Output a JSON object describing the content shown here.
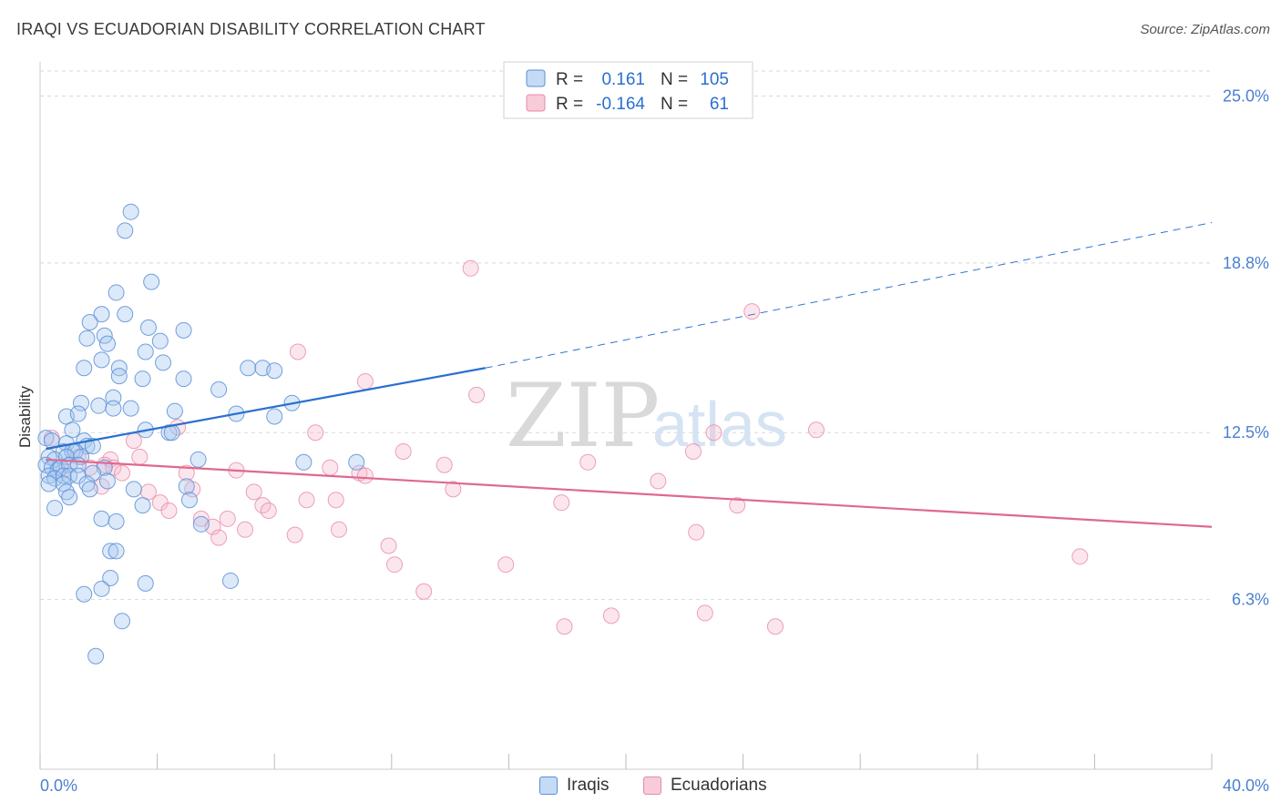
{
  "header": {
    "title": "IRAQI VS ECUADORIAN DISABILITY CORRELATION CHART",
    "source": "Source: ZipAtlas.com"
  },
  "watermark": {
    "zip": "ZIP",
    "atlas": "atlas"
  },
  "colors": {
    "iraqi_fill": "#a8c8f0",
    "iraqi_stroke": "#5a8fd6",
    "iraqi_line": "#2a6fcf",
    "ecuadorian_fill": "#f6b8cc",
    "ecuadorian_stroke": "#e789a8",
    "ecuadorian_line": "#e0688f",
    "axis_label": "#4a7fd0",
    "grid": "#d8d8d8"
  },
  "legend_top": {
    "rows": [
      {
        "r_label": "R =",
        "r_value": "0.161",
        "n_label": "N =",
        "n_value": "105"
      },
      {
        "r_label": "R =",
        "r_value": "-0.164",
        "n_label": "N =",
        "n_value": "61"
      }
    ]
  },
  "legend_bottom": {
    "iraqi": "Iraqis",
    "ecuadorian": "Ecuadorians"
  },
  "chart_data": {
    "type": "scatter",
    "title": "IRAQI VS ECUADORIAN DISABILITY CORRELATION CHART",
    "xlabel": "",
    "ylabel": "Disability",
    "xlim": [
      0,
      40
    ],
    "ylim": [
      0,
      26.2
    ],
    "x_tick_labels": [
      "0.0%",
      "40.0%"
    ],
    "y_ticks": [
      6.3,
      12.5,
      18.8,
      25.0
    ],
    "y_tick_labels": [
      "6.3%",
      "12.5%",
      "18.8%",
      "25.0%"
    ],
    "grid": "horizontal dashed",
    "series": [
      {
        "name": "Iraqis",
        "R": 0.161,
        "N": 105,
        "trend": {
          "solid": [
            [
              0.2,
              11.9
            ],
            [
              15.2,
              14.9
            ]
          ],
          "dashed": [
            [
              15.2,
              14.9
            ],
            [
              40,
              20.3
            ]
          ]
        },
        "points": [
          [
            3.1,
            20.7
          ],
          [
            2.9,
            20.0
          ],
          [
            3.8,
            18.1
          ],
          [
            2.6,
            17.7
          ],
          [
            2.1,
            16.9
          ],
          [
            2.9,
            16.9
          ],
          [
            1.7,
            16.6
          ],
          [
            3.7,
            16.4
          ],
          [
            4.9,
            16.3
          ],
          [
            2.2,
            16.1
          ],
          [
            1.6,
            16.0
          ],
          [
            4.1,
            15.9
          ],
          [
            2.3,
            15.8
          ],
          [
            3.6,
            15.5
          ],
          [
            2.1,
            15.2
          ],
          [
            4.2,
            15.1
          ],
          [
            1.5,
            14.9
          ],
          [
            2.7,
            14.9
          ],
          [
            7.1,
            14.9
          ],
          [
            7.6,
            14.9
          ],
          [
            8.0,
            14.8
          ],
          [
            2.7,
            14.6
          ],
          [
            3.5,
            14.5
          ],
          [
            4.9,
            14.5
          ],
          [
            6.1,
            14.1
          ],
          [
            2.5,
            13.8
          ],
          [
            1.4,
            13.6
          ],
          [
            2.0,
            13.5
          ],
          [
            2.5,
            13.4
          ],
          [
            3.1,
            13.4
          ],
          [
            8.6,
            13.6
          ],
          [
            4.6,
            13.3
          ],
          [
            6.7,
            13.2
          ],
          [
            0.9,
            13.1
          ],
          [
            1.3,
            13.2
          ],
          [
            8.0,
            13.1
          ],
          [
            3.6,
            12.6
          ],
          [
            4.4,
            12.5
          ],
          [
            4.5,
            12.5
          ],
          [
            1.1,
            12.6
          ],
          [
            0.2,
            12.3
          ],
          [
            0.4,
            12.2
          ],
          [
            0.9,
            12.1
          ],
          [
            1.5,
            12.2
          ],
          [
            1.6,
            12.0
          ],
          [
            1.8,
            12.0
          ],
          [
            0.8,
            11.8
          ],
          [
            1.1,
            11.8
          ],
          [
            1.2,
            11.8
          ],
          [
            0.3,
            11.6
          ],
          [
            0.5,
            11.5
          ],
          [
            0.9,
            11.6
          ],
          [
            1.4,
            11.6
          ],
          [
            0.2,
            11.3
          ],
          [
            0.4,
            11.2
          ],
          [
            0.6,
            11.1
          ],
          [
            0.7,
            11.2
          ],
          [
            1.0,
            11.3
          ],
          [
            1.3,
            11.3
          ],
          [
            2.2,
            11.2
          ],
          [
            0.3,
            10.9
          ],
          [
            0.5,
            10.8
          ],
          [
            0.8,
            10.9
          ],
          [
            1.0,
            10.9
          ],
          [
            1.3,
            10.9
          ],
          [
            1.8,
            11.0
          ],
          [
            5.4,
            11.5
          ],
          [
            9.0,
            11.4
          ],
          [
            10.8,
            11.4
          ],
          [
            0.3,
            10.6
          ],
          [
            0.8,
            10.6
          ],
          [
            1.6,
            10.6
          ],
          [
            2.3,
            10.7
          ],
          [
            0.9,
            10.3
          ],
          [
            1.7,
            10.4
          ],
          [
            3.2,
            10.4
          ],
          [
            5.0,
            10.5
          ],
          [
            5.1,
            10.0
          ],
          [
            1.0,
            10.1
          ],
          [
            3.5,
            9.8
          ],
          [
            0.5,
            9.7
          ],
          [
            2.1,
            9.3
          ],
          [
            2.6,
            9.2
          ],
          [
            5.5,
            9.1
          ],
          [
            2.4,
            8.1
          ],
          [
            2.6,
            8.1
          ],
          [
            2.4,
            7.1
          ],
          [
            3.6,
            6.9
          ],
          [
            6.5,
            7.0
          ],
          [
            2.1,
            6.7
          ],
          [
            1.5,
            6.5
          ],
          [
            2.8,
            5.5
          ],
          [
            1.9,
            4.2
          ]
        ]
      },
      {
        "name": "Ecuadorians",
        "R": -0.164,
        "N": 61,
        "trend": {
          "solid": [
            [
              0.2,
              11.5
            ],
            [
              40,
              9.0
            ]
          ]
        },
        "points": [
          [
            14.7,
            18.6
          ],
          [
            24.3,
            17.0
          ],
          [
            8.8,
            15.5
          ],
          [
            11.1,
            14.4
          ],
          [
            14.9,
            13.9
          ],
          [
            4.7,
            12.7
          ],
          [
            9.4,
            12.5
          ],
          [
            23.0,
            12.5
          ],
          [
            26.5,
            12.6
          ],
          [
            3.2,
            12.2
          ],
          [
            12.4,
            11.8
          ],
          [
            22.3,
            11.8
          ],
          [
            0.4,
            12.3
          ],
          [
            1.3,
            11.6
          ],
          [
            2.4,
            11.5
          ],
          [
            2.2,
            11.3
          ],
          [
            2.5,
            11.2
          ],
          [
            3.4,
            11.6
          ],
          [
            6.7,
            11.1
          ],
          [
            9.9,
            11.2
          ],
          [
            10.9,
            11.0
          ],
          [
            11.1,
            10.9
          ],
          [
            13.8,
            11.3
          ],
          [
            18.7,
            11.4
          ],
          [
            5.0,
            11.0
          ],
          [
            0.8,
            11.1
          ],
          [
            1.7,
            11.2
          ],
          [
            2.8,
            11.0
          ],
          [
            21.1,
            10.7
          ],
          [
            2.1,
            10.5
          ],
          [
            3.7,
            10.3
          ],
          [
            5.2,
            10.4
          ],
          [
            7.3,
            10.3
          ],
          [
            14.1,
            10.4
          ],
          [
            9.1,
            10.0
          ],
          [
            10.1,
            10.0
          ],
          [
            4.1,
            9.9
          ],
          [
            4.4,
            9.6
          ],
          [
            7.6,
            9.8
          ],
          [
            17.8,
            9.9
          ],
          [
            23.8,
            9.8
          ],
          [
            7.8,
            9.6
          ],
          [
            5.5,
            9.3
          ],
          [
            6.4,
            9.3
          ],
          [
            5.9,
            9.0
          ],
          [
            7.0,
            8.9
          ],
          [
            10.2,
            8.9
          ],
          [
            8.7,
            8.7
          ],
          [
            22.4,
            8.8
          ],
          [
            6.1,
            8.6
          ],
          [
            11.9,
            8.3
          ],
          [
            35.5,
            7.9
          ],
          [
            12.1,
            7.6
          ],
          [
            15.9,
            7.6
          ],
          [
            13.1,
            6.6
          ],
          [
            19.5,
            5.7
          ],
          [
            22.7,
            5.8
          ],
          [
            17.9,
            5.3
          ],
          [
            25.1,
            5.3
          ]
        ]
      }
    ]
  }
}
